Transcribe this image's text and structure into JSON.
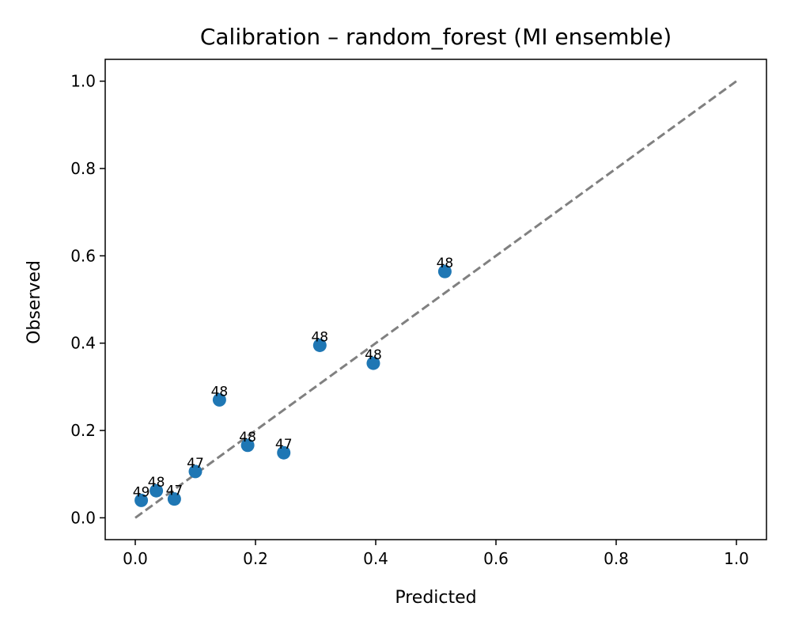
{
  "chart_data": {
    "type": "scatter",
    "title": "Calibration – random_forest (MI ensemble)",
    "xlabel": "Predicted",
    "ylabel": "Observed",
    "xlim": [
      -0.05,
      1.05
    ],
    "ylim": [
      -0.05,
      1.05
    ],
    "xticks": [
      "0.0",
      "0.2",
      "0.4",
      "0.6",
      "0.8",
      "1.0"
    ],
    "yticks": [
      "0.0",
      "0.2",
      "0.4",
      "0.6",
      "0.8",
      "1.0"
    ],
    "grid": false,
    "legend": "none",
    "series": [
      {
        "color": "#1f77b4",
        "points": [
          {
            "x": 0.01,
            "y": 0.04,
            "label": "49"
          },
          {
            "x": 0.035,
            "y": 0.062,
            "label": "48"
          },
          {
            "x": 0.065,
            "y": 0.043,
            "label": "47"
          },
          {
            "x": 0.1,
            "y": 0.106,
            "label": "47"
          },
          {
            "x": 0.14,
            "y": 0.27,
            "label": "48"
          },
          {
            "x": 0.187,
            "y": 0.166,
            "label": "48"
          },
          {
            "x": 0.247,
            "y": 0.149,
            "label": "47"
          },
          {
            "x": 0.307,
            "y": 0.395,
            "label": "48"
          },
          {
            "x": 0.396,
            "y": 0.354,
            "label": "48"
          },
          {
            "x": 0.515,
            "y": 0.564,
            "label": "48"
          }
        ]
      }
    ],
    "reference_line": {
      "x": [
        0,
        1
      ],
      "y": [
        0,
        1
      ],
      "color": "#808080",
      "style": "dashed"
    }
  }
}
